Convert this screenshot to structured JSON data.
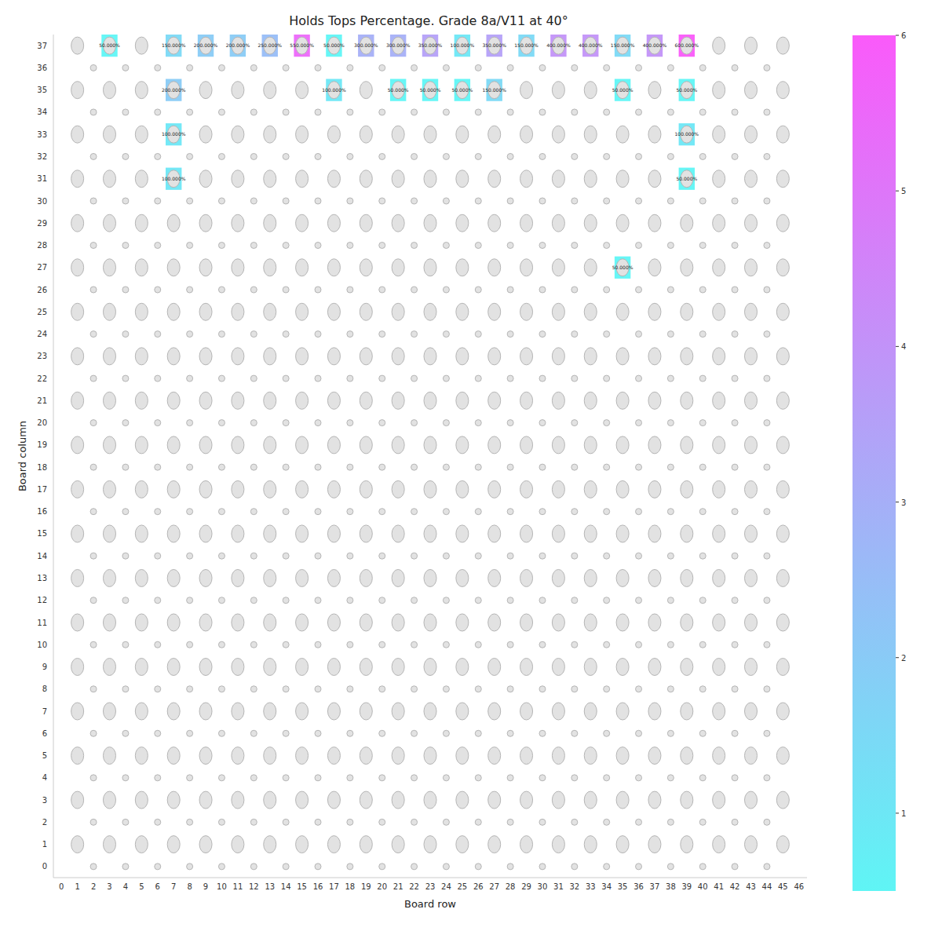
{
  "chart_data": {
    "type": "heatmap",
    "title": "Holds Tops Percentage. Grade 8a/V11 at 40°",
    "x_label": "Board row",
    "y_label": "Board column",
    "xlim": [
      -0.5,
      46.5
    ],
    "xticks": [
      0,
      1,
      2,
      3,
      4,
      5,
      6,
      7,
      8,
      9,
      10,
      11,
      12,
      13,
      14,
      15,
      16,
      17,
      18,
      19,
      20,
      21,
      22,
      23,
      24,
      25,
      26,
      27,
      28,
      29,
      30,
      31,
      32,
      33,
      34,
      35,
      36,
      37,
      38,
      39,
      40,
      41,
      42,
      43,
      44,
      45,
      46
    ],
    "ylim": [
      -0.5,
      37.5
    ],
    "yticks": [
      0,
      1,
      2,
      3,
      4,
      5,
      6,
      7,
      8,
      9,
      10,
      11,
      12,
      13,
      14,
      15,
      16,
      17,
      18,
      19,
      20,
      21,
      22,
      23,
      24,
      25,
      26,
      27,
      28,
      29,
      30,
      31,
      32,
      33,
      34,
      35,
      36,
      37
    ],
    "data_labels": true,
    "cells": [
      {
        "x": 3,
        "y": 37,
        "value": 0.5,
        "label": "50.000%"
      },
      {
        "x": 7,
        "y": 37,
        "value": 1.5,
        "label": "150.000%"
      },
      {
        "x": 9,
        "y": 37,
        "value": 2,
        "label": "200.000%"
      },
      {
        "x": 11,
        "y": 37,
        "value": 2,
        "label": "200.000%"
      },
      {
        "x": 13,
        "y": 37,
        "value": 2.5,
        "label": "250.000%"
      },
      {
        "x": 15,
        "y": 37,
        "value": 5.5,
        "label": "550.000%"
      },
      {
        "x": 17,
        "y": 37,
        "value": 0.5,
        "label": "50.000%"
      },
      {
        "x": 19,
        "y": 37,
        "value": 3,
        "label": "300.000%"
      },
      {
        "x": 21,
        "y": 37,
        "value": 3,
        "label": "300.000%"
      },
      {
        "x": 23,
        "y": 37,
        "value": 3.5,
        "label": "350.000%"
      },
      {
        "x": 25,
        "y": 37,
        "value": 1,
        "label": "100.000%"
      },
      {
        "x": 27,
        "y": 37,
        "value": 3.5,
        "label": "350.000%"
      },
      {
        "x": 29,
        "y": 37,
        "value": 1.5,
        "label": "150.000%"
      },
      {
        "x": 31,
        "y": 37,
        "value": 4,
        "label": "400.000%"
      },
      {
        "x": 33,
        "y": 37,
        "value": 4,
        "label": "400.000%"
      },
      {
        "x": 35,
        "y": 37,
        "value": 1.5,
        "label": "150.000%"
      },
      {
        "x": 37,
        "y": 37,
        "value": 4,
        "label": "400.000%"
      },
      {
        "x": 39,
        "y": 37,
        "value": 6,
        "label": "600.000%"
      },
      {
        "x": 7,
        "y": 35,
        "value": 2,
        "label": "200.000%"
      },
      {
        "x": 17,
        "y": 35,
        "value": 1,
        "label": "100.000%"
      },
      {
        "x": 21,
        "y": 35,
        "value": 0.5,
        "label": "50.000%"
      },
      {
        "x": 23,
        "y": 35,
        "value": 0.5,
        "label": "50.000%"
      },
      {
        "x": 25,
        "y": 35,
        "value": 0.5,
        "label": "50.000%"
      },
      {
        "x": 27,
        "y": 35,
        "value": 1.5,
        "label": "150.000%"
      },
      {
        "x": 35,
        "y": 35,
        "value": 0.5,
        "label": "50.000%"
      },
      {
        "x": 39,
        "y": 35,
        "value": 0.5,
        "label": "50.000%"
      },
      {
        "x": 7,
        "y": 33,
        "value": 1,
        "label": "100.000%"
      },
      {
        "x": 39,
        "y": 33,
        "value": 1,
        "label": "100.000%"
      },
      {
        "x": 7,
        "y": 31,
        "value": 1,
        "label": "100.000%"
      },
      {
        "x": 39,
        "y": 31,
        "value": 0.5,
        "label": "50.000%"
      },
      {
        "x": 35,
        "y": 27,
        "value": 0.5,
        "label": "50.000%"
      }
    ],
    "colorbar_range": [
      0.5,
      6
    ],
    "colorbar_ticks": [
      1,
      2,
      3,
      4,
      5,
      6
    ]
  }
}
